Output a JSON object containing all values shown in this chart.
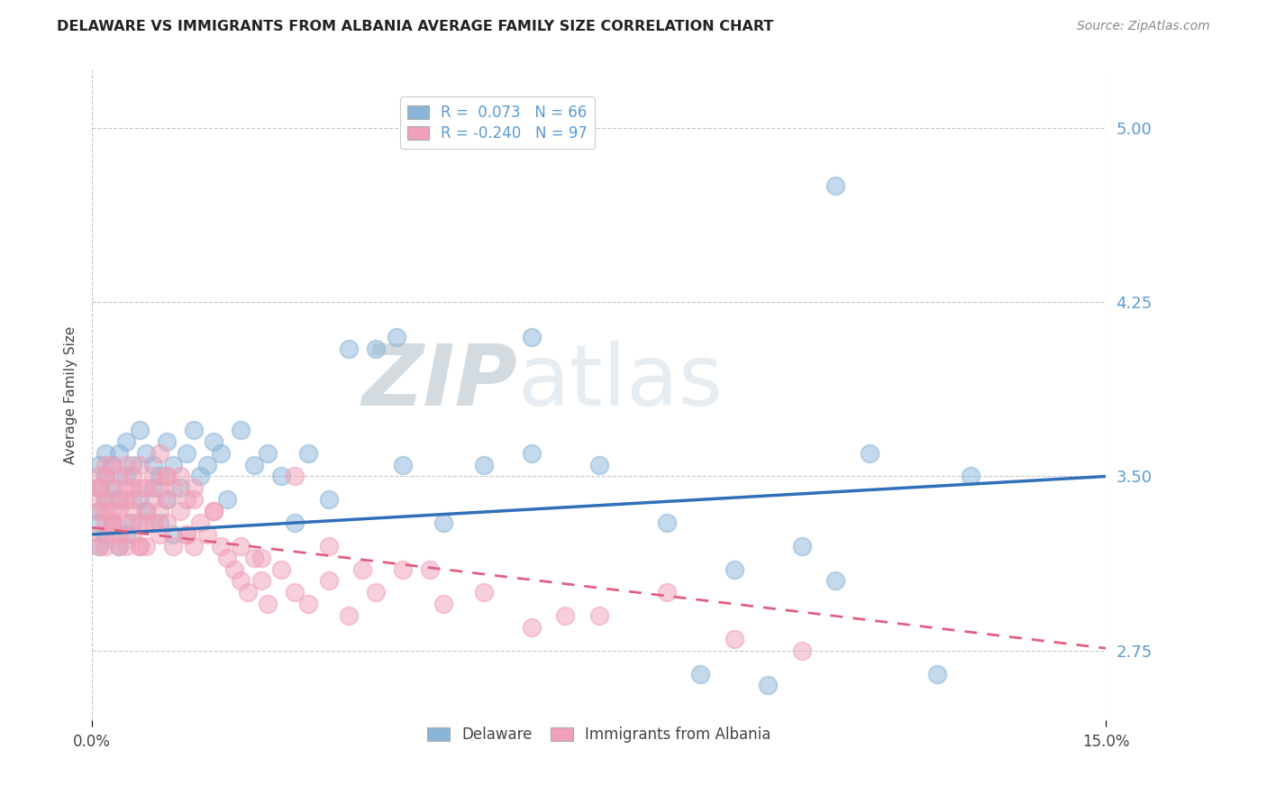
{
  "title": "DELAWARE VS IMMIGRANTS FROM ALBANIA AVERAGE FAMILY SIZE CORRELATION CHART",
  "source": "Source: ZipAtlas.com",
  "ylabel": "Average Family Size",
  "xlim": [
    0.0,
    0.15
  ],
  "ylim": [
    2.45,
    5.25
  ],
  "yticks": [
    2.75,
    3.5,
    4.25,
    5.0
  ],
  "xticklabels": [
    "0.0%",
    "15.0%"
  ],
  "bg_color": "#ffffff",
  "grid_color": "#c8c8c8",
  "delaware_color": "#8ab4d8",
  "albania_color": "#f0a0b8",
  "delaware_line_color": "#3070b8",
  "albania_line_color": "#e06080",
  "ytick_color": "#5b9bd5",
  "del_line_y0": 3.25,
  "del_line_y1": 3.5,
  "alb_line_y0": 3.28,
  "alb_line_y1": 2.76,
  "del_x": [
    0.001,
    0.001,
    0.001,
    0.001,
    0.001,
    0.002,
    0.002,
    0.002,
    0.002,
    0.003,
    0.003,
    0.003,
    0.004,
    0.004,
    0.004,
    0.005,
    0.005,
    0.005,
    0.006,
    0.006,
    0.007,
    0.007,
    0.008,
    0.008,
    0.009,
    0.009,
    0.01,
    0.01,
    0.011,
    0.011,
    0.012,
    0.012,
    0.013,
    0.014,
    0.015,
    0.016,
    0.017,
    0.018,
    0.019,
    0.02,
    0.022,
    0.024,
    0.026,
    0.028,
    0.03,
    0.032,
    0.035,
    0.038,
    0.042,
    0.046,
    0.052,
    0.058,
    0.065,
    0.075,
    0.085,
    0.095,
    0.105,
    0.115,
    0.125,
    0.1,
    0.11,
    0.065,
    0.045,
    0.09,
    0.11,
    0.13
  ],
  "del_y": [
    3.3,
    3.45,
    3.2,
    3.55,
    3.35,
    3.25,
    3.4,
    3.5,
    3.6,
    3.3,
    3.45,
    3.55,
    3.2,
    3.4,
    3.6,
    3.25,
    3.5,
    3.65,
    3.3,
    3.55,
    3.4,
    3.7,
    3.35,
    3.6,
    3.45,
    3.55,
    3.3,
    3.5,
    3.4,
    3.65,
    3.25,
    3.55,
    3.45,
    3.6,
    3.7,
    3.5,
    3.55,
    3.65,
    3.6,
    3.4,
    3.7,
    3.55,
    3.6,
    3.5,
    3.3,
    3.6,
    3.4,
    4.05,
    4.05,
    3.55,
    3.3,
    3.55,
    3.6,
    3.55,
    3.3,
    3.1,
    3.2,
    3.6,
    2.65,
    2.6,
    3.05,
    4.1,
    4.1,
    2.65,
    4.75,
    3.5
  ],
  "alb_x": [
    0.001,
    0.001,
    0.001,
    0.001,
    0.001,
    0.001,
    0.002,
    0.002,
    0.002,
    0.002,
    0.002,
    0.003,
    0.003,
    0.003,
    0.003,
    0.003,
    0.004,
    0.004,
    0.004,
    0.004,
    0.005,
    0.005,
    0.005,
    0.005,
    0.006,
    0.006,
    0.006,
    0.006,
    0.007,
    0.007,
    0.007,
    0.007,
    0.008,
    0.008,
    0.008,
    0.009,
    0.009,
    0.009,
    0.01,
    0.01,
    0.01,
    0.011,
    0.011,
    0.011,
    0.012,
    0.012,
    0.013,
    0.013,
    0.014,
    0.014,
    0.015,
    0.015,
    0.016,
    0.017,
    0.018,
    0.019,
    0.02,
    0.021,
    0.022,
    0.023,
    0.024,
    0.025,
    0.026,
    0.028,
    0.03,
    0.032,
    0.035,
    0.038,
    0.042,
    0.046,
    0.052,
    0.058,
    0.065,
    0.075,
    0.085,
    0.095,
    0.105,
    0.04,
    0.03,
    0.022,
    0.015,
    0.01,
    0.007,
    0.005,
    0.003,
    0.001,
    0.002,
    0.004,
    0.006,
    0.008,
    0.011,
    0.014,
    0.018,
    0.025,
    0.035,
    0.05,
    0.07
  ],
  "alb_y": [
    3.4,
    3.25,
    3.5,
    3.35,
    3.2,
    3.45,
    3.3,
    3.5,
    3.4,
    3.55,
    3.2,
    3.35,
    3.45,
    3.25,
    3.55,
    3.3,
    3.4,
    3.2,
    3.5,
    3.35,
    3.3,
    3.45,
    3.55,
    3.2,
    3.4,
    3.25,
    3.5,
    3.35,
    3.3,
    3.45,
    3.55,
    3.2,
    3.35,
    3.45,
    3.2,
    3.3,
    3.5,
    3.4,
    3.25,
    3.45,
    3.35,
    3.3,
    3.5,
    3.4,
    3.2,
    3.45,
    3.35,
    3.5,
    3.25,
    3.4,
    3.2,
    3.45,
    3.3,
    3.25,
    3.35,
    3.2,
    3.15,
    3.1,
    3.05,
    3.0,
    3.15,
    3.05,
    2.95,
    3.1,
    3.0,
    2.95,
    3.05,
    2.9,
    3.0,
    3.1,
    2.95,
    3.0,
    2.85,
    2.9,
    3.0,
    2.8,
    2.75,
    3.1,
    3.5,
    3.2,
    3.4,
    3.6,
    3.2,
    3.4,
    3.3,
    3.45,
    3.35,
    3.25,
    3.45,
    3.3,
    3.5,
    3.25,
    3.35,
    3.15,
    3.2,
    3.1,
    2.9
  ]
}
